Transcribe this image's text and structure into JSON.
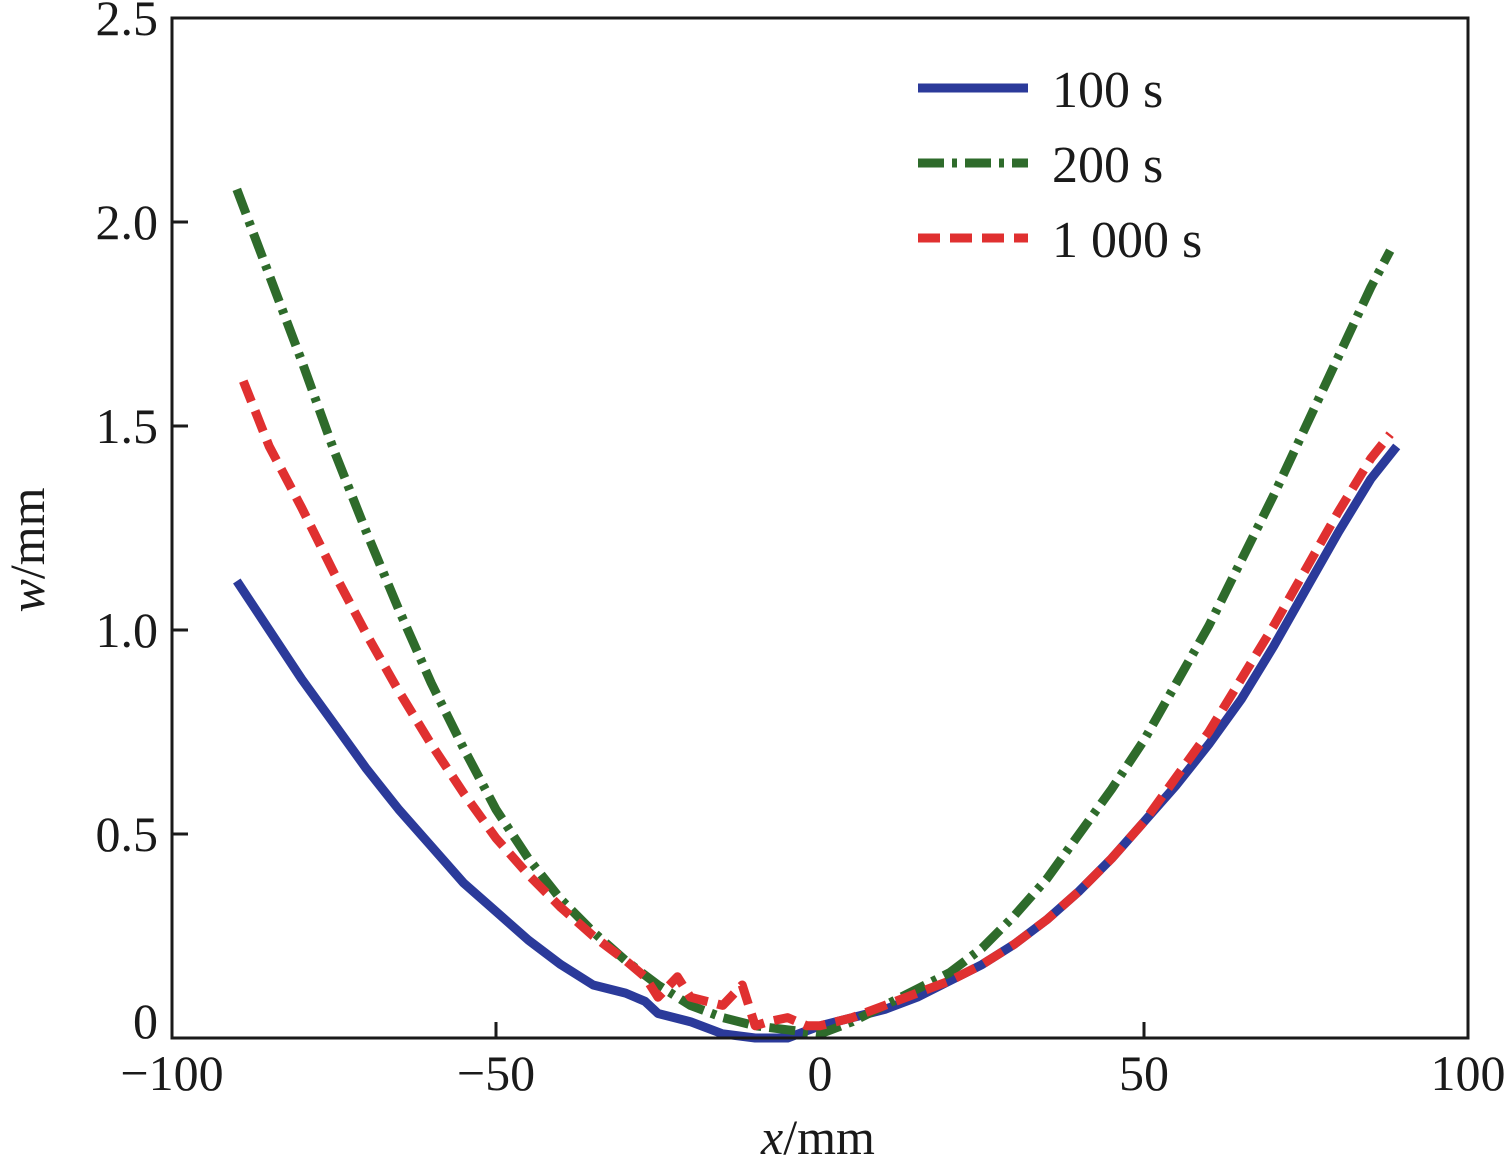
{
  "chart_data": {
    "type": "line",
    "title": "",
    "xlabel": {
      "var": "x",
      "unit": "/mm"
    },
    "ylabel": {
      "var": "w",
      "unit": "/mm"
    },
    "xlim": [
      -100,
      100
    ],
    "ylim": [
      0,
      2.5
    ],
    "xticks": [
      {
        "value": -100,
        "label": "−100"
      },
      {
        "value": -50,
        "label": "−50"
      },
      {
        "value": 0,
        "label": "0"
      },
      {
        "value": 50,
        "label": "50"
      },
      {
        "value": 100,
        "label": "100"
      }
    ],
    "yticks": [
      {
        "value": 0,
        "label": "0"
      },
      {
        "value": 0.5,
        "label": "0.5"
      },
      {
        "value": 1.0,
        "label": "1.0"
      },
      {
        "value": 1.5,
        "label": "1.5"
      },
      {
        "value": 2.0,
        "label": "2.0"
      },
      {
        "value": 2.5,
        "label": "2.5"
      }
    ],
    "grid": false,
    "legend_position": "top-right",
    "series": [
      {
        "name": "100 s",
        "color": "#2b3a9a",
        "style": "solid",
        "x": [
          -90,
          -85,
          -80,
          -75,
          -70,
          -65,
          -60,
          -55,
          -50,
          -45,
          -40,
          -35,
          -30,
          -27,
          -25,
          -20,
          -15,
          -10,
          -5,
          0,
          5,
          10,
          15,
          20,
          25,
          30,
          35,
          40,
          45,
          50,
          55,
          60,
          65,
          70,
          75,
          80,
          85,
          89
        ],
        "y": [
          1.12,
          1.0,
          0.88,
          0.77,
          0.66,
          0.56,
          0.47,
          0.38,
          0.31,
          0.24,
          0.18,
          0.13,
          0.11,
          0.09,
          0.06,
          0.04,
          0.01,
          0.0,
          0.0,
          0.03,
          0.05,
          0.07,
          0.1,
          0.14,
          0.18,
          0.23,
          0.29,
          0.36,
          0.44,
          0.53,
          0.62,
          0.72,
          0.83,
          0.96,
          1.1,
          1.24,
          1.37,
          1.45
        ]
      },
      {
        "name": "200 s",
        "color": "#2e6b2b",
        "style": "dashdot",
        "x": [
          -90,
          -85,
          -80,
          -75,
          -70,
          -65,
          -60,
          -55,
          -50,
          -45,
          -40,
          -35,
          -30,
          -25,
          -20,
          -15,
          -10,
          -5,
          0,
          5,
          10,
          15,
          20,
          25,
          30,
          35,
          40,
          45,
          50,
          55,
          60,
          65,
          70,
          75,
          80,
          85,
          88
        ],
        "y": [
          2.08,
          1.87,
          1.66,
          1.44,
          1.24,
          1.05,
          0.87,
          0.71,
          0.56,
          0.44,
          0.34,
          0.26,
          0.19,
          0.13,
          0.08,
          0.05,
          0.03,
          0.02,
          0.01,
          0.04,
          0.08,
          0.12,
          0.16,
          0.22,
          0.3,
          0.39,
          0.5,
          0.61,
          0.73,
          0.87,
          1.01,
          1.17,
          1.33,
          1.5,
          1.67,
          1.84,
          1.93
        ]
      },
      {
        "name": "1 000 s",
        "color": "#e03030",
        "style": "dashed",
        "x": [
          -89,
          -85,
          -80,
          -75,
          -70,
          -65,
          -60,
          -55,
          -50,
          -45,
          -40,
          -35,
          -30,
          -27,
          -25,
          -22,
          -20,
          -15,
          -12,
          -10,
          -8,
          -5,
          -2,
          0,
          5,
          10,
          15,
          20,
          25,
          30,
          35,
          40,
          45,
          50,
          55,
          60,
          65,
          70,
          75,
          80,
          85,
          88
        ],
        "y": [
          1.61,
          1.45,
          1.3,
          1.14,
          0.99,
          0.85,
          0.72,
          0.6,
          0.49,
          0.4,
          0.32,
          0.25,
          0.19,
          0.15,
          0.1,
          0.15,
          0.1,
          0.08,
          0.13,
          0.03,
          0.04,
          0.05,
          0.03,
          0.03,
          0.05,
          0.08,
          0.11,
          0.14,
          0.18,
          0.23,
          0.29,
          0.36,
          0.44,
          0.53,
          0.64,
          0.75,
          0.88,
          1.01,
          1.15,
          1.29,
          1.42,
          1.48
        ]
      }
    ]
  }
}
